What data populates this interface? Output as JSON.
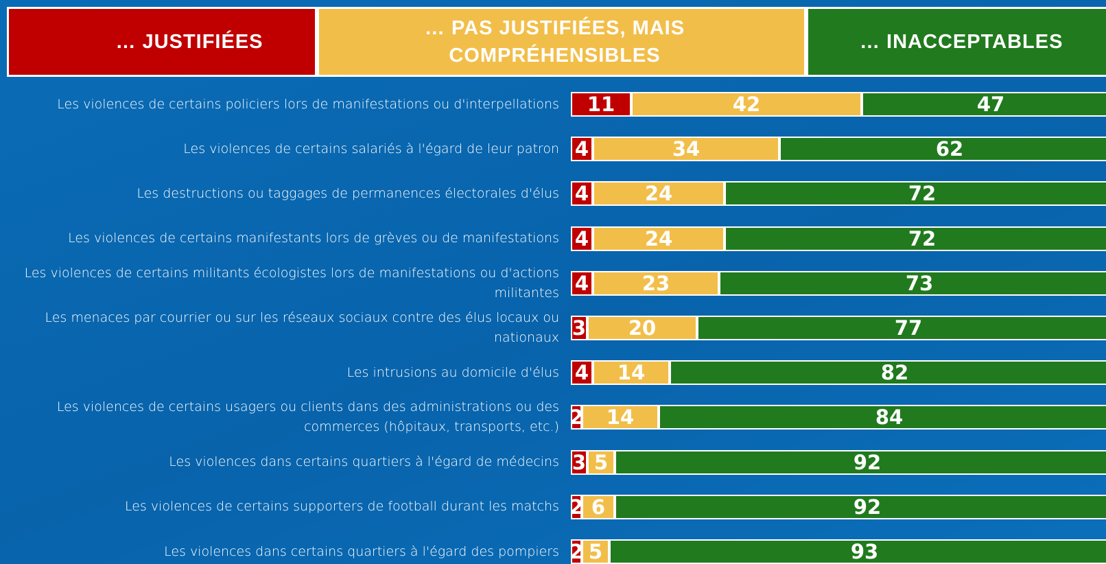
{
  "chart_data": {
    "type": "stacked_bar_horizontal",
    "categories": [
      "Les violences de certains policiers lors de manifestations ou d'interpellations",
      "Les violences de certains salariés à l'égard de leur patron",
      "Les destructions ou taggages de permanences électorales d'élus",
      "Les violences de certains manifestants lors de grèves ou de manifestations",
      "Les violences de certains militants écologistes lors de manifestations ou d'actions militantes",
      "Les menaces par courrier ou sur les réseaux sociaux contre des élus locaux ou nationaux",
      "Les intrusions au domicile d'élus",
      "Les violences de certains usagers ou clients dans des administrations ou des commerces (hôpitaux, transports, etc.)",
      "Les violences dans certains quartiers à l'égard de médecins",
      "Les violences de certains supporters de football durant les matchs",
      "Les violences dans certains quartiers à l'égard des pompiers"
    ],
    "series": [
      {
        "name": "… JUSTIFIÉES",
        "color": "#c00000",
        "values": [
          11,
          4,
          4,
          4,
          4,
          3,
          4,
          2,
          3,
          2,
          2
        ]
      },
      {
        "name": "… PAS JUSTIFIÉES, MAIS COMPRÉHENSIBLES",
        "color": "#f2be4a",
        "values": [
          42,
          34,
          24,
          24,
          23,
          20,
          14,
          14,
          5,
          6,
          5
        ]
      },
      {
        "name": "… INACCEPTABLES",
        "color": "#217a1e",
        "values": [
          47,
          62,
          72,
          72,
          73,
          77,
          82,
          84,
          92,
          92,
          93
        ]
      }
    ],
    "xlim": [
      0,
      100
    ]
  }
}
